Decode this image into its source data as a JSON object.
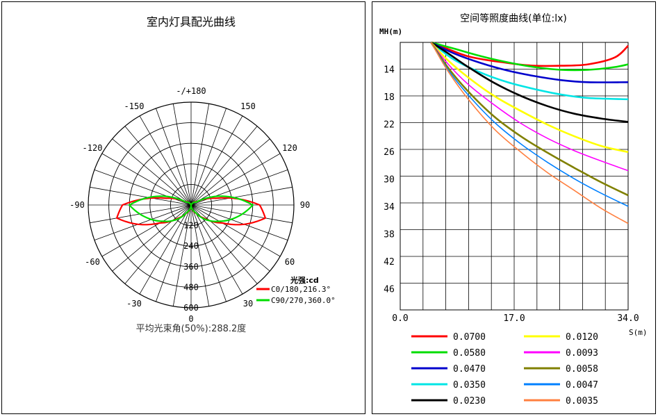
{
  "polar": {
    "title": "室内灯具配光曲线",
    "angle_labels": [
      {
        "deg": 0,
        "text": "-/+180"
      },
      {
        "deg": -30,
        "text": "-150"
      },
      {
        "deg": 30,
        "text": "150"
      },
      {
        "deg": -60,
        "text": "-120"
      },
      {
        "deg": 60,
        "text": "120"
      },
      {
        "deg": -90,
        "text": "-90"
      },
      {
        "deg": 90,
        "text": "90"
      },
      {
        "deg": -120,
        "text": "-60"
      },
      {
        "deg": 120,
        "text": "60"
      },
      {
        "deg": -150,
        "text": "-30"
      },
      {
        "deg": 150,
        "text": "30"
      },
      {
        "deg": 180,
        "text": "0"
      }
    ],
    "radial_ticks": [
      "120",
      "240",
      "360",
      "480",
      "600"
    ],
    "radial_max": 600,
    "unit_label": "光强:cd",
    "legend": [
      {
        "label": "C0/180,216.3°",
        "color": "#ff0000"
      },
      {
        "label": "C90/270,360.0°",
        "color": "#00dd00"
      }
    ],
    "footer": "平均光束角(50%):288.2度"
  },
  "iso": {
    "title": "空间等照度曲线(单位:lx)",
    "y_axis_label": "MH(m)",
    "x_axis_label": "S(m)",
    "y_ticks": [
      "14",
      "18",
      "22",
      "26",
      "30",
      "34",
      "38",
      "42",
      "46"
    ],
    "x_ticks": [
      "0.0",
      "17.0",
      "34.0"
    ],
    "legend": [
      {
        "label": "0.0700",
        "color": "#ff0000"
      },
      {
        "label": "0.0580",
        "color": "#00dd00"
      },
      {
        "label": "0.0470",
        "color": "#0000cc"
      },
      {
        "label": "0.0350",
        "color": "#00e5e5"
      },
      {
        "label": "0.0230",
        "color": "#000000"
      },
      {
        "label": "0.0120",
        "color": "#ffff00"
      },
      {
        "label": "0.0093",
        "color": "#ff00ff"
      },
      {
        "label": "0.0058",
        "color": "#808000"
      },
      {
        "label": "0.0047",
        "color": "#0080ff"
      },
      {
        "label": "0.0035",
        "color": "#ff8040"
      }
    ]
  },
  "chart_data": [
    {
      "type": "polar",
      "title": "室内灯具配光曲线",
      "unit": "cd",
      "radial_range": [
        0,
        600
      ],
      "series": [
        {
          "name": "C0/180,216.3°",
          "angles_deg": [
            -180,
            -150,
            -120,
            -105,
            -90,
            -80,
            -70,
            -60,
            -45,
            -30,
            0,
            30,
            45,
            60,
            70,
            80,
            90,
            105,
            120,
            150,
            180
          ],
          "values": [
            0,
            5,
            40,
            150,
            400,
            440,
            330,
            210,
            110,
            55,
            0,
            55,
            110,
            210,
            330,
            440,
            400,
            150,
            40,
            5,
            0
          ]
        },
        {
          "name": "C90/270,360.0°",
          "angles_deg": [
            -180,
            -150,
            -120,
            -90,
            -60,
            -30,
            0,
            30,
            60,
            90,
            120,
            150,
            180
          ],
          "values": [
            0,
            5,
            35,
            360,
            190,
            50,
            0,
            50,
            190,
            360,
            35,
            5,
            0
          ]
        }
      ]
    },
    {
      "type": "line",
      "title": "空间等照度曲线(单位:lx)",
      "xlabel": "S(m)",
      "ylabel": "MH(m)",
      "xlim": [
        0,
        34
      ],
      "ylim": [
        10,
        49
      ],
      "y_inverted": true,
      "series": [
        {
          "name": "0.0700",
          "x": [
            4.8,
            10,
            16,
            20,
            24,
            28,
            32,
            34
          ],
          "y": [
            10.0,
            12.0,
            13.0,
            13.4,
            13.4,
            13.2,
            12.2,
            10.5
          ]
        },
        {
          "name": "0.0580",
          "x": [
            4.6,
            8,
            12,
            16,
            20,
            24,
            28,
            32,
            34
          ],
          "y": [
            10.0,
            10.9,
            12.0,
            12.9,
            13.6,
            14.0,
            14.0,
            13.6,
            13.2
          ]
        },
        {
          "name": "0.0470",
          "x": [
            4.6,
            8,
            12,
            16,
            20,
            24,
            28,
            34
          ],
          "y": [
            10.0,
            11.6,
            13.0,
            14.1,
            14.9,
            15.5,
            15.8,
            15.8
          ]
        },
        {
          "name": "0.0350",
          "x": [
            4.6,
            8,
            12,
            16,
            20,
            24,
            28,
            34
          ],
          "y": [
            10.0,
            12.5,
            14.4,
            15.8,
            16.8,
            17.6,
            18.1,
            18.3
          ]
        },
        {
          "name": "0.0230",
          "x": [
            4.6,
            7,
            10,
            14,
            18,
            22,
            26,
            30,
            34
          ],
          "y": [
            10.0,
            11.5,
            13.5,
            15.9,
            17.8,
            19.3,
            20.4,
            21.1,
            21.6
          ]
        },
        {
          "name": "0.0120",
          "x": [
            4.6,
            7,
            10,
            14,
            18,
            22,
            26,
            30,
            34
          ],
          "y": [
            10.0,
            12.5,
            15.0,
            17.8,
            20.0,
            22.0,
            23.7,
            25.1,
            26.0
          ]
        },
        {
          "name": "0.0093",
          "x": [
            4.6,
            7,
            10,
            14,
            18,
            22,
            26,
            30,
            34
          ],
          "y": [
            10.0,
            13.0,
            16.0,
            19.1,
            21.8,
            24.0,
            25.8,
            27.3,
            28.7
          ]
        },
        {
          "name": "0.0058",
          "x": [
            4.6,
            7,
            10,
            14,
            18,
            22,
            26,
            30,
            34
          ],
          "y": [
            10.0,
            13.5,
            17.0,
            20.8,
            23.7,
            26.1,
            28.3,
            30.4,
            32.3
          ]
        },
        {
          "name": "0.0047",
          "x": [
            4.6,
            7,
            10,
            14,
            18,
            22,
            26,
            30,
            34
          ],
          "y": [
            10.0,
            13.8,
            17.5,
            21.6,
            24.8,
            27.5,
            29.9,
            32.0,
            33.9
          ]
        },
        {
          "name": "0.0035",
          "x": [
            4.6,
            7,
            10,
            14,
            18,
            22,
            26,
            30,
            34
          ],
          "y": [
            10.0,
            14.0,
            18.1,
            22.6,
            26.0,
            29.0,
            31.6,
            34.2,
            36.4
          ]
        }
      ]
    }
  ]
}
